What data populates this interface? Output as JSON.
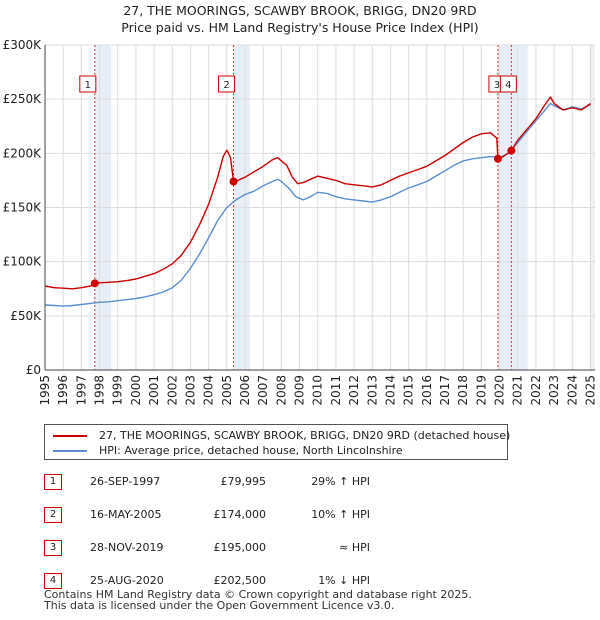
{
  "title": {
    "line1": "27, THE MOORINGS, SCAWBY BROOK, BRIGG, DN20 9RD",
    "line2": "Price paid vs. HM Land Registry's House Price Index (HPI)"
  },
  "chart_data": {
    "type": "line",
    "x_range": [
      1995.0,
      2025.25
    ],
    "ylim": [
      0,
      300000
    ],
    "yticks": [
      {
        "value": 0,
        "label": "£0"
      },
      {
        "value": 50000,
        "label": "£50K"
      },
      {
        "value": 100000,
        "label": "£100K"
      },
      {
        "value": 150000,
        "label": "£150K"
      },
      {
        "value": 200000,
        "label": "£200K"
      },
      {
        "value": 250000,
        "label": "£250K"
      },
      {
        "value": 300000,
        "label": "£300K"
      }
    ],
    "xticks": [
      "1995",
      "1996",
      "1997",
      "1998",
      "1999",
      "2000",
      "2001",
      "2002",
      "2003",
      "2004",
      "2005",
      "2006",
      "2007",
      "2008",
      "2009",
      "2010",
      "2011",
      "2012",
      "2013",
      "2014",
      "2015",
      "2016",
      "2017",
      "2018",
      "2019",
      "2020",
      "2021",
      "2022",
      "2023",
      "2024",
      "2025"
    ],
    "grid": true,
    "series": [
      {
        "name": "27, THE MOORINGS, SCAWBY BROOK, BRIGG, DN20 9RD (detached house)",
        "color": "#cc0000",
        "points": [
          [
            1995.0,
            77500
          ],
          [
            1995.5,
            76000
          ],
          [
            1996.0,
            75500
          ],
          [
            1996.5,
            75000
          ],
          [
            1997.0,
            76000
          ],
          [
            1997.5,
            77500
          ],
          [
            1997.74,
            79995
          ],
          [
            1998.0,
            80500
          ],
          [
            1998.5,
            81000
          ],
          [
            1999.0,
            81500
          ],
          [
            1999.5,
            82500
          ],
          [
            2000.0,
            84000
          ],
          [
            2000.5,
            86500
          ],
          [
            2001.0,
            89000
          ],
          [
            2001.5,
            93000
          ],
          [
            2002.0,
            98000
          ],
          [
            2002.5,
            106000
          ],
          [
            2003.0,
            118000
          ],
          [
            2003.5,
            134000
          ],
          [
            2004.0,
            153000
          ],
          [
            2004.5,
            178000
          ],
          [
            2004.8,
            197000
          ],
          [
            2005.0,
            203000
          ],
          [
            2005.2,
            196000
          ],
          [
            2005.37,
            174000
          ],
          [
            2005.6,
            175000
          ],
          [
            2006.0,
            178000
          ],
          [
            2006.5,
            183000
          ],
          [
            2007.0,
            188000
          ],
          [
            2007.5,
            194000
          ],
          [
            2007.8,
            196000
          ],
          [
            2008.0,
            193000
          ],
          [
            2008.3,
            189000
          ],
          [
            2008.6,
            178000
          ],
          [
            2008.9,
            172000
          ],
          [
            2009.2,
            173000
          ],
          [
            2009.6,
            176000
          ],
          [
            2010.0,
            179000
          ],
          [
            2010.5,
            177000
          ],
          [
            2011.0,
            175000
          ],
          [
            2011.5,
            172000
          ],
          [
            2012.0,
            171000
          ],
          [
            2012.5,
            170000
          ],
          [
            2013.0,
            169000
          ],
          [
            2013.5,
            171000
          ],
          [
            2014.0,
            175000
          ],
          [
            2014.5,
            179000
          ],
          [
            2015.0,
            182000
          ],
          [
            2015.5,
            185000
          ],
          [
            2016.0,
            188000
          ],
          [
            2016.5,
            193000
          ],
          [
            2017.0,
            198000
          ],
          [
            2017.5,
            204000
          ],
          [
            2018.0,
            210000
          ],
          [
            2018.5,
            215000
          ],
          [
            2019.0,
            218000
          ],
          [
            2019.5,
            219000
          ],
          [
            2019.85,
            214000
          ],
          [
            2019.91,
            195000
          ],
          [
            2020.2,
            197000
          ],
          [
            2020.65,
            202500
          ],
          [
            2021.0,
            212000
          ],
          [
            2021.5,
            222000
          ],
          [
            2022.0,
            232000
          ],
          [
            2022.5,
            245000
          ],
          [
            2022.8,
            252000
          ],
          [
            2023.0,
            246000
          ],
          [
            2023.5,
            240000
          ],
          [
            2024.0,
            242000
          ],
          [
            2024.5,
            240000
          ],
          [
            2025.0,
            246000
          ]
        ]
      },
      {
        "name": "HPI: Average price, detached house, North Lincolnshire",
        "color": "#5b8fd0",
        "points": [
          [
            1995.0,
            60000
          ],
          [
            1995.5,
            59500
          ],
          [
            1996.0,
            59000
          ],
          [
            1996.5,
            59500
          ],
          [
            1997.0,
            60500
          ],
          [
            1997.5,
            61500
          ],
          [
            1998.0,
            62500
          ],
          [
            1998.5,
            63000
          ],
          [
            1999.0,
            64000
          ],
          [
            1999.5,
            65000
          ],
          [
            2000.0,
            66000
          ],
          [
            2000.5,
            67500
          ],
          [
            2001.0,
            69500
          ],
          [
            2001.5,
            72000
          ],
          [
            2002.0,
            76000
          ],
          [
            2002.5,
            83000
          ],
          [
            2003.0,
            94000
          ],
          [
            2003.5,
            107000
          ],
          [
            2004.0,
            122000
          ],
          [
            2004.5,
            138000
          ],
          [
            2005.0,
            150000
          ],
          [
            2005.5,
            157000
          ],
          [
            2006.0,
            162000
          ],
          [
            2006.5,
            165000
          ],
          [
            2007.0,
            170000
          ],
          [
            2007.5,
            174000
          ],
          [
            2007.8,
            176000
          ],
          [
            2008.0,
            174000
          ],
          [
            2008.4,
            168000
          ],
          [
            2008.8,
            160000
          ],
          [
            2009.2,
            157000
          ],
          [
            2009.6,
            160000
          ],
          [
            2010.0,
            164000
          ],
          [
            2010.5,
            163000
          ],
          [
            2011.0,
            160000
          ],
          [
            2011.5,
            158000
          ],
          [
            2012.0,
            157000
          ],
          [
            2012.5,
            156000
          ],
          [
            2013.0,
            155000
          ],
          [
            2013.5,
            157000
          ],
          [
            2014.0,
            160000
          ],
          [
            2014.5,
            164000
          ],
          [
            2015.0,
            168000
          ],
          [
            2015.5,
            171000
          ],
          [
            2016.0,
            174000
          ],
          [
            2016.5,
            179000
          ],
          [
            2017.0,
            184000
          ],
          [
            2017.5,
            189000
          ],
          [
            2018.0,
            193000
          ],
          [
            2018.5,
            195000
          ],
          [
            2019.0,
            196000
          ],
          [
            2019.5,
            197000
          ],
          [
            2020.0,
            196000
          ],
          [
            2020.5,
            200000
          ],
          [
            2021.0,
            210000
          ],
          [
            2021.5,
            220000
          ],
          [
            2022.0,
            230000
          ],
          [
            2022.5,
            240000
          ],
          [
            2022.8,
            246000
          ],
          [
            2023.0,
            244000
          ],
          [
            2023.5,
            240000
          ],
          [
            2024.0,
            243000
          ],
          [
            2024.5,
            241000
          ],
          [
            2025.0,
            245000
          ]
        ]
      }
    ],
    "sales": [
      {
        "id": "1",
        "x": 1997.74,
        "price_value": 79995,
        "date": "26-SEP-1997",
        "price": "£79,995",
        "hpi": "29% ↑ HPI"
      },
      {
        "id": "2",
        "x": 2005.37,
        "price_value": 174000,
        "date": "16-MAY-2005",
        "price": "£174,000",
        "hpi": "10% ↑ HPI"
      },
      {
        "id": "3",
        "x": 2019.91,
        "price_value": 195000,
        "date": "28-NOV-2019",
        "price": "£195,000",
        "hpi": "≈ HPI"
      },
      {
        "id": "4",
        "x": 2020.65,
        "price_value": 202500,
        "date": "25-AUG-2020",
        "price": "£202,500",
        "hpi": "1% ↓ HPI"
      }
    ],
    "colors": {
      "grid": "#dddddd",
      "shade": "#e8eef8",
      "sale_marker": "#cc0000"
    }
  },
  "legend": {
    "property": "27, THE MOORINGS, SCAWBY BROOK, BRIGG, DN20 9RD (detached house)",
    "hpi": "HPI: Average price, detached house, North Lincolnshire"
  },
  "footer": {
    "line1": "Contains HM Land Registry data © Crown copyright and database right 2025.",
    "line2": "This data is licensed under the Open Government Licence v3.0."
  }
}
